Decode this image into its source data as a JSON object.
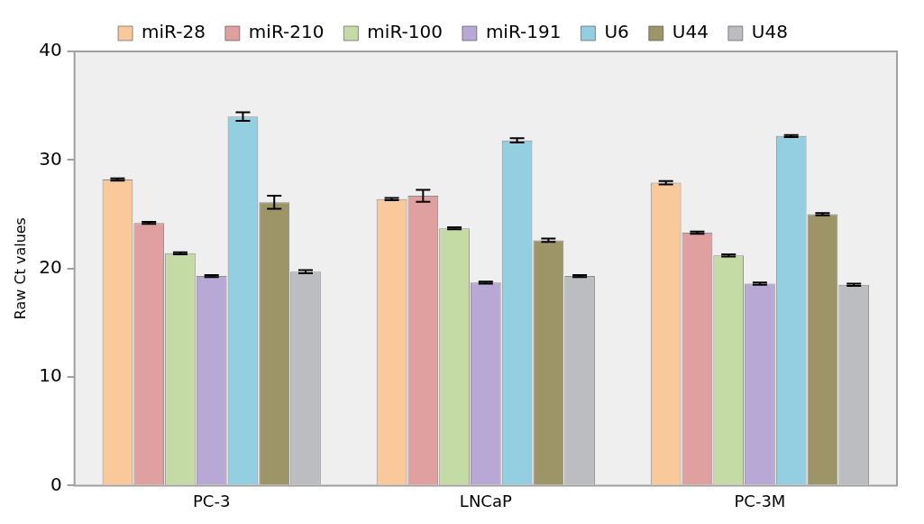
{
  "chart_data": {
    "type": "bar",
    "ylabel": "Raw Ct values",
    "categories": [
      "PC-3",
      "LNCaP",
      "PC-3M"
    ],
    "series": [
      {
        "name": "miR-28",
        "color": "#f9c89b",
        "values": [
          28.2,
          26.4,
          27.9
        ],
        "errors": [
          0.1,
          0.1,
          0.15
        ]
      },
      {
        "name": "miR-210",
        "color": "#e0a0a0",
        "values": [
          24.2,
          26.7,
          23.3
        ],
        "errors": [
          0.1,
          0.55,
          0.1
        ]
      },
      {
        "name": "miR-100",
        "color": "#c5dba5",
        "values": [
          21.4,
          23.7,
          21.2
        ],
        "errors": [
          0.1,
          0.1,
          0.1
        ]
      },
      {
        "name": "miR-191",
        "color": "#b7a8d6",
        "values": [
          19.3,
          18.7,
          18.6
        ],
        "errors": [
          0.1,
          0.1,
          0.1
        ]
      },
      {
        "name": "U6",
        "color": "#93cfe0",
        "values": [
          34.0,
          31.8,
          32.2
        ],
        "errors": [
          0.4,
          0.2,
          0.1
        ]
      },
      {
        "name": "U44",
        "color": "#9d9468",
        "values": [
          26.1,
          22.6,
          25.0
        ],
        "errors": [
          0.6,
          0.15,
          0.1
        ]
      },
      {
        "name": "U48",
        "color": "#bcbdc0",
        "values": [
          19.7,
          19.3,
          18.5
        ],
        "errors": [
          0.15,
          0.1,
          0.1
        ]
      }
    ],
    "ylim": [
      0,
      40
    ],
    "yticks": [
      0,
      10,
      20,
      30,
      40
    ],
    "grid": false,
    "legend": "top"
  }
}
